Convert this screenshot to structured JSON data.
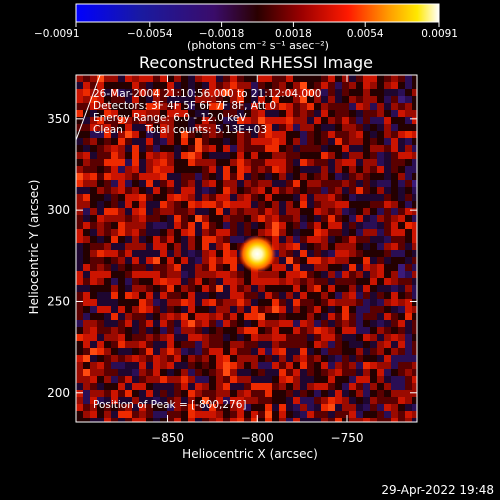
{
  "chart_data": {
    "type": "heatmap",
    "title": "Reconstructed RHESSI Image",
    "xlabel": "Heliocentric X (arcsec)",
    "ylabel": "Heliocentric Y (arcsec)",
    "xlim": [
      -901,
      -711
    ],
    "ylim": [
      184,
      374
    ],
    "x_ticks": [
      -850,
      -800,
      -750
    ],
    "x_tick_labels": [
      "−850",
      "−800",
      "−750"
    ],
    "y_ticks": [
      200,
      250,
      300,
      350
    ],
    "y_tick_labels": [
      "200",
      "250",
      "300",
      "350"
    ],
    "colorbar": {
      "min": -0.0091,
      "max": 0.0091,
      "ticks": [
        -0.0091,
        -0.0054,
        -0.0018,
        0.0018,
        0.0054,
        0.0091
      ],
      "tick_labels": [
        "−0.0091",
        "−0.0054",
        "−0.0018",
        "0.0018",
        "0.0054",
        "0.0091"
      ],
      "unit_label": "(photons cm⁻² s⁻¹ asec⁻²)"
    },
    "annotations": {
      "time_range": "26-Mar-2004 21:10:56.000 to 21:12:04.000",
      "detectors": "Detectors: 3F 4F 5F 6F 7F 8F, Att 0",
      "energy_range": "Energy Range: 6.0 - 12.0 keV",
      "algorithm": "Clean",
      "total_counts": "Total counts: 5.13E+03",
      "peak_position": "Position of Peak = [-800,276]"
    },
    "peak": {
      "x": -800,
      "y": 276
    },
    "peak_value": 0.0091
  },
  "footer": {
    "date": "29-Apr-2022 19:48"
  },
  "colors": {
    "background": "#000000",
    "text": "#ffffff"
  }
}
